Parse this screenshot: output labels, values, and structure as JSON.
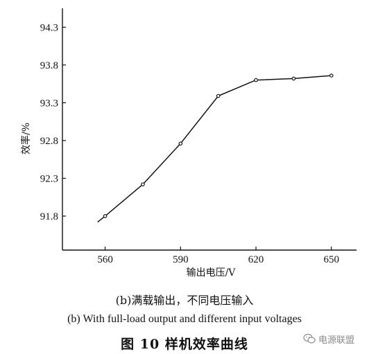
{
  "chart_data": {
    "type": "line",
    "title": "",
    "xlabel": "输出电压/V",
    "ylabel": "效率/%",
    "x": [
      557,
      560,
      575,
      590,
      605,
      620,
      635,
      650
    ],
    "y": [
      91.72,
      91.8,
      92.22,
      92.76,
      93.39,
      93.6,
      93.62,
      93.66
    ],
    "marker_x": [
      560,
      575,
      590,
      605,
      620,
      635,
      650
    ],
    "marker_y": [
      91.8,
      92.22,
      92.76,
      93.39,
      93.6,
      93.62,
      93.66
    ],
    "xlim": [
      543,
      660
    ],
    "ylim": [
      91.35,
      94.55
    ],
    "xticks": [
      560,
      590,
      620,
      650
    ],
    "xtick_labels": [
      "560",
      "590",
      "620",
      "650"
    ],
    "yticks": [
      91.8,
      92.3,
      92.8,
      93.3,
      93.8,
      94.3
    ],
    "ytick_labels": [
      "91.8",
      "92.3",
      "92.8",
      "93.3",
      "93.8",
      "94.3"
    ],
    "grid": false,
    "legend": "none"
  },
  "captions": {
    "zh": "(b)满载输出，不同电压输入",
    "en": "(b) With full-load output and different input voltages",
    "figure_title": "图 10   样机效率曲线"
  },
  "watermark": {
    "text": "电源联盟",
    "icon": "wechat-icon"
  },
  "colors": {
    "line": "#111111",
    "background": "#ffffff"
  }
}
